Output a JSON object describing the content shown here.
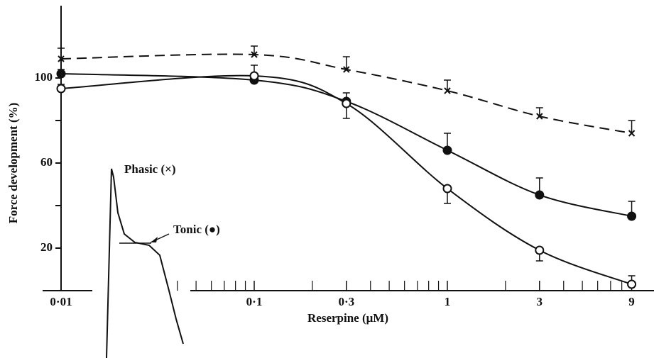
{
  "chart_data": {
    "type": "line",
    "xlabel": "Reserpine (μM)",
    "ylabel": "Force development (%)",
    "x": [
      0.01,
      0.1,
      0.3,
      1,
      3,
      9
    ],
    "xlog": true,
    "xlim": [
      0.01,
      10
    ],
    "xticks": [
      {
        "value": 0.01,
        "label": "0·01"
      },
      {
        "value": 0.1,
        "label": "0·1"
      },
      {
        "value": 0.3,
        "label": "0·3"
      },
      1,
      3,
      9
    ],
    "xminor_ticks": [
      0.04,
      0.05,
      0.06,
      0.07,
      0.08,
      0.09,
      0.2,
      0.4,
      0.5,
      0.6,
      0.7,
      0.8,
      0.9,
      2,
      4,
      5,
      6,
      7,
      8
    ],
    "ylim": [
      0,
      130
    ],
    "yticks": [
      20,
      60,
      100
    ],
    "yminor_ticks": [
      40,
      80
    ],
    "series": [
      {
        "name": "Phasic (×)",
        "marker": "cross",
        "dashed": true,
        "color": "#111111",
        "values": [
          109,
          111,
          104,
          94,
          82,
          74
        ],
        "errors": [
          5,
          4,
          6,
          5,
          4,
          6
        ],
        "error_direction": [
          "up",
          "up",
          "up",
          "up",
          "up",
          "up"
        ]
      },
      {
        "name": "Tonic (●)",
        "marker": "filled",
        "dashed": false,
        "color": "#111111",
        "values": [
          102,
          99,
          89,
          66,
          45,
          35
        ],
        "errors": [
          2,
          3,
          4,
          8,
          8,
          7
        ],
        "error_direction": [
          "up",
          "up",
          "up",
          "up",
          "up",
          "up"
        ]
      },
      {
        "marker": "open",
        "dashed": false,
        "color": "#111111",
        "values": [
          95,
          101,
          88,
          48,
          19,
          3
        ],
        "errors": [
          2,
          5,
          7,
          7,
          5,
          4
        ],
        "error_direction": [
          "up",
          "up",
          "down",
          "down",
          "down",
          "up"
        ]
      }
    ]
  }
}
